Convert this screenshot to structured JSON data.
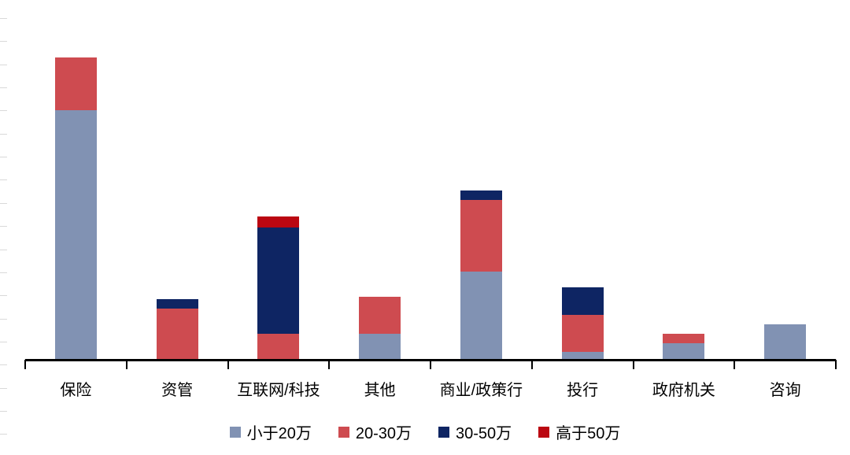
{
  "chart_data": {
    "type": "bar",
    "stacked": true,
    "orientation": "vertical",
    "title": "",
    "xlabel": "",
    "ylabel": "",
    "ylim": [
      0,
      75
    ],
    "y_axis_labels_visible": false,
    "grid": false,
    "legend_position": "bottom",
    "categories": [
      "保险",
      "资管",
      "互联网/科技",
      "其他",
      "商业/政策行",
      "投行",
      "政府机关",
      "咨询"
    ],
    "series": [
      {
        "name": "小于20万",
        "color": "#8192B3",
        "values": [
          54,
          0,
          0,
          5.5,
          19,
          1.5,
          3.5,
          7.5
        ]
      },
      {
        "name": "20-30万",
        "color": "#CE4B50",
        "values": [
          11.5,
          11,
          5.5,
          8,
          15.5,
          8,
          2,
          0
        ]
      },
      {
        "name": "30-50万",
        "color": "#0E2563",
        "values": [
          0,
          2,
          23,
          0,
          2,
          6,
          0,
          0
        ]
      },
      {
        "name": "高于50万",
        "color": "#BB0711",
        "values": [
          0,
          0,
          2.5,
          0,
          0,
          0,
          0,
          0
        ]
      }
    ]
  },
  "colors": {
    "axis": "#000000",
    "faint_tick": "#d9d9d9",
    "background": "#ffffff",
    "text": "#000000"
  }
}
